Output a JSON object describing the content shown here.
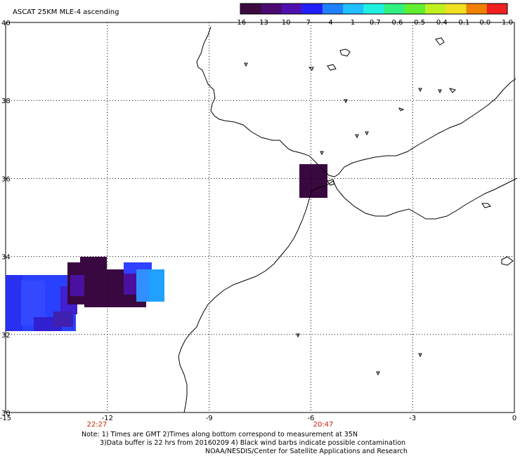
{
  "title": "ASCAT 25KM MLE-4 ascending",
  "colorbar": {
    "labels": [
      "-16",
      "-13",
      "-10",
      "-7",
      "-4",
      "-1",
      "-0.7",
      "-0.6",
      "-0.5",
      "-0.4",
      "-0.1",
      "0.0",
      "1.0"
    ],
    "colors": [
      "#3a0a40",
      "#4a0a70",
      "#5010b0",
      "#2020ff",
      "#2080ff",
      "#20c0ff",
      "#20f0e0",
      "#30f080",
      "#60f030",
      "#c0f020",
      "#f0e020",
      "#f08000",
      "#f02020"
    ]
  },
  "axes": {
    "x_ticks": [
      "-15",
      "-12",
      "-9",
      "-6",
      "-3",
      "0"
    ],
    "y_ticks": [
      "40",
      "38",
      "36",
      "34",
      "32",
      "30"
    ],
    "time_labels": [
      "22:27",
      "20:47"
    ]
  },
  "notes": {
    "line1": "Note: 1) Times are GMT 2)Times along bottom correspond to measurement at 35N",
    "line2": "3)Data buffer is 22 hrs from 20160209 4) Black wind barbs indicate possible contamination",
    "line3": "NOAA/NESDIS/Center for Satellite Applications and Research"
  },
  "swath_colors": {
    "deep_purple": "#3a0840",
    "purple": "#4a10a0",
    "blue": "#2a40ff",
    "light_blue": "#3090ff",
    "cyan_blue": "#20a0ff"
  }
}
